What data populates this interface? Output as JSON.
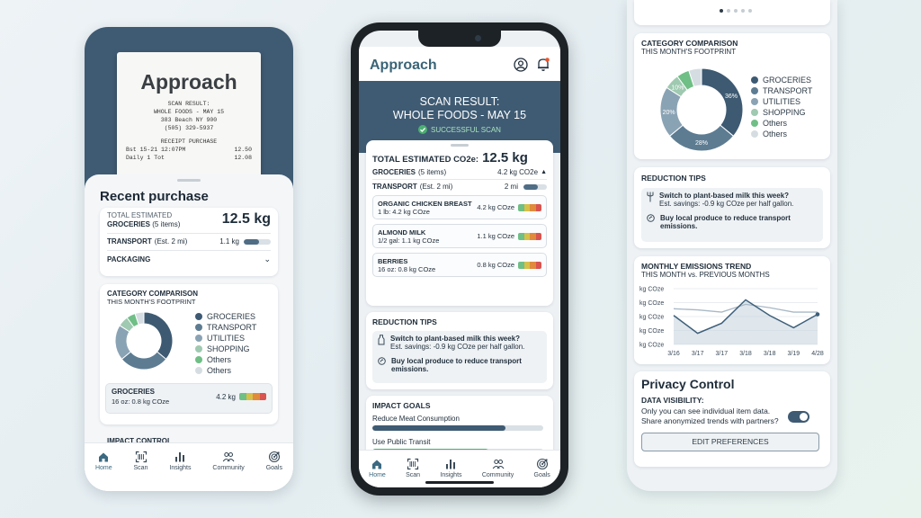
{
  "left_phone": {
    "receipt": {
      "logo": "Approach",
      "line1": "SCAN RESULT:",
      "line2": "WHOLE FOODS - MAY 15",
      "line3": "383 Beach NY 900",
      "line4": "(505) 329-5937",
      "line5": "RECEIPT PURCHASE",
      "row1_left": "Bst 15-21 12:07PM",
      "row1_right": "12.50",
      "row2_left": "Daily 1 Tot",
      "row2_right": "12.08"
    },
    "title": "Recent purchase",
    "total_label": "TOTAL ESTIMATED",
    "total_value": "12.5 kg",
    "groceries_label": "GROCERIES",
    "groceries_count": "(5 items)",
    "transport_label": "TRANSPORT",
    "transport_sub": "(Est. 2 mi)",
    "transport_value": "1.1 kg",
    "transport_fraction": 0.55,
    "packaging_label": "PACKAGING",
    "category": {
      "title": "CATEGORY COMPARISON",
      "subtitle": "THIS MONTH'S FOOTPRINT",
      "legend": [
        "GROCERIES",
        "TRANSPORT",
        "UTILITIES",
        "SHOPPING",
        "Others",
        "Others"
      ]
    },
    "groceries_card": {
      "label": "GROCERIES",
      "sub": "16 oz: 0.8 kg COze",
      "value": "4.2 kg"
    },
    "impact_control": "IMPACT CONTROL"
  },
  "center_phone": {
    "logo": "Approach",
    "scan_title_1": "SCAN RESULT:",
    "scan_title_2": "WHOLE FOODS - MAY 15",
    "scan_status": "SUCCESSFUL SCAN",
    "total_label": "TOTAL ESTIMATED CO2e:",
    "total_value": "12.5 kg",
    "groceries_label": "GROCERIES",
    "groceries_count": "(5 items)",
    "groceries_value": "4.2 kg CO2e",
    "transport_label": "TRANSPORT",
    "transport_sub": "(Est. 2 mi)",
    "transport_value": "2 mi",
    "transport_fraction": 0.6,
    "items": [
      {
        "name": "ORGANIC CHICKEN BREAST",
        "sub": "1 lb: 4.2 kg COze",
        "value": "4.2 kg COze"
      },
      {
        "name": "ALMOND MILK",
        "sub": "1/2 gal: 1.1 kg COze",
        "value": "1.1 kg COze"
      },
      {
        "name": "BERRIES",
        "sub": "16 oz: 0.8 kg COze",
        "value": "0.8 kg COze"
      }
    ],
    "tips_title": "REDUCTION TIPS",
    "tip1_title": "Switch to plant-based milk this week?",
    "tip1_sub": "Est. savings: -0.9 kg COze per half gallon.",
    "tip2_title": "Buy local produce to reduce transport emissions.",
    "goals_title": "IMPACT GOALS",
    "goal1": "Reduce Meat Consumption",
    "goal1_fraction": 0.78,
    "goal2": "Use Public Transit",
    "goal2_fraction": 0.68
  },
  "right_phone": {
    "category": {
      "title": "CATEGORY COMPARISON",
      "subtitle": "THIS MONTH'S FOOTPRINT",
      "legend": [
        "GROCERIES",
        "TRANSPORT",
        "UTILITIES",
        "SHOPPING",
        "Others",
        "Others"
      ],
      "slice_labels": [
        "36%",
        "28%",
        "20%",
        "10%"
      ]
    },
    "tips_title": "REDUCTION TIPS",
    "tip1_title": "Switch to plant-based milk this week?",
    "tip1_sub": "Est. savings: -0.9 kg COze per half gallon.",
    "tip2_title": "Buy local produce to reduce transport emissions.",
    "trend_title": "MONTHLY EMISSIONS TREND",
    "trend_subtitle": "THIS MONTH vs. PREVIOUS MONTHS",
    "privacy_title": "Privacy Control",
    "visibility_label": "DATA VISIBILITY:",
    "visibility_line1": "Only you can see individual item data.",
    "visibility_line2": "Share anonymized trends with partners?",
    "edit_button": "EDIT PREFERENCES"
  },
  "nav": {
    "home": "Home",
    "scan": "Scan",
    "insights": "Insights",
    "community": "Community",
    "goals": "Goals"
  },
  "chart_data": {
    "type": "line",
    "title": "MONTHLY EMISSIONS TREND",
    "subtitle": "THIS MONTH vs. PREVIOUS MONTHS",
    "categories": [
      "3/16",
      "3/17",
      "3/17",
      "3/18",
      "3/18",
      "3/19",
      "4/28"
    ],
    "y_tick_labels": [
      "kg COze",
      "kg COze",
      "kg COze",
      "kg COze",
      "kg COze"
    ],
    "ylim": [
      0,
      5
    ],
    "series": [
      {
        "values": [
          2.6,
          1.0,
          1.9,
          4.0,
          2.6,
          1.5,
          2.7
        ]
      },
      {
        "values": [
          3.2,
          3.1,
          2.9,
          3.6,
          3.3,
          2.9,
          2.9
        ]
      }
    ],
    "colors": [
      "#3d5f7a",
      "#a8b8c6"
    ]
  },
  "colors": {
    "primary": "#3f5b73",
    "accent": "#3b6a82",
    "green": "#4caf72",
    "donut": [
      "#3d5a72",
      "#5d7c92",
      "#8aa3b4",
      "#9fc9b0",
      "#6fbf86",
      "#d6dde2"
    ]
  }
}
